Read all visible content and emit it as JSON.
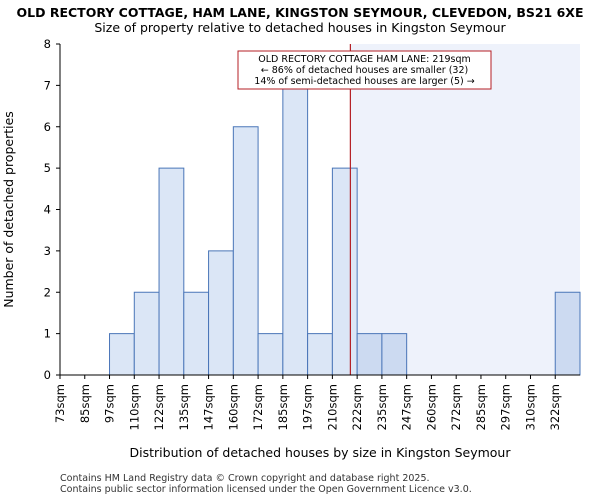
{
  "chart_data": {
    "type": "bar",
    "title": "OLD RECTORY COTTAGE, HAM LANE, KINGSTON SEYMOUR, CLEVEDON, BS21 6XE",
    "subtitle": "Size of property relative to detached houses in Kingston Seymour",
    "xlabel": "Distribution of detached houses by size in Kingston Seymour",
    "ylabel": "Number of detached properties",
    "categories": [
      "73sqm",
      "85sqm",
      "97sqm",
      "110sqm",
      "122sqm",
      "135sqm",
      "147sqm",
      "160sqm",
      "172sqm",
      "185sqm",
      "197sqm",
      "210sqm",
      "222sqm",
      "235sqm",
      "247sqm",
      "260sqm",
      "272sqm",
      "285sqm",
      "297sqm",
      "310sqm",
      "322sqm"
    ],
    "values": [
      0,
      0,
      1,
      2,
      5,
      2,
      3,
      6,
      1,
      7,
      1,
      5,
      1,
      1,
      0,
      0,
      0,
      0,
      0,
      0,
      2
    ],
    "ylim": [
      0,
      8
    ],
    "yticks": [
      "0",
      "1",
      "2",
      "3",
      "4",
      "5",
      "6",
      "7",
      "8"
    ],
    "marker_value_sqm": 219,
    "annotation": {
      "line1": "OLD RECTORY COTTAGE HAM LANE: 219sqm",
      "line2": "← 86% of detached houses are smaller (32)",
      "line3": "14% of semi-detached houses are larger (5) →"
    },
    "colors": {
      "bar_fill": "#dbe6f6",
      "bar_fill_highlight": "#ccdaf1",
      "bar_stroke": "#4a76b8",
      "shade_region": "#eef2fb",
      "marker": "#b41f24"
    },
    "grid": false
  },
  "footer": {
    "line1": "Contains HM Land Registry data © Crown copyright and database right 2025.",
    "line2": "Contains public sector information licensed under the Open Government Licence v3.0."
  }
}
